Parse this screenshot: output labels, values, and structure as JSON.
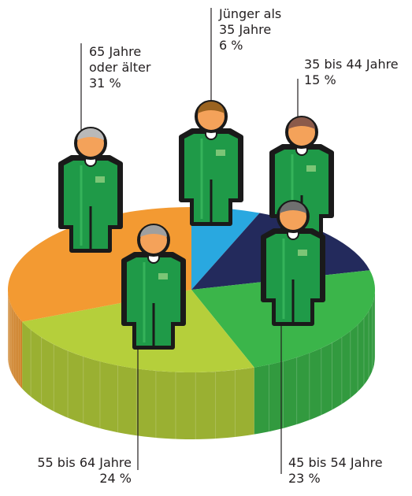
{
  "chart_data": {
    "type": "pie",
    "categories": [
      "Jünger als 35 Jahre",
      "35 bis 44 Jahre",
      "45 bis 54 Jahre",
      "55 bis 64 Jahre",
      "65 Jahre oder älter"
    ],
    "values": [
      6,
      15,
      23,
      24,
      31
    ],
    "value_labels": [
      "6 %",
      "15 %",
      "23 %",
      "24 %",
      "31 %"
    ],
    "colors": [
      "#29a8e0",
      "#232a5c",
      "#3bb54a",
      "#b5cf3b",
      "#f39a32"
    ]
  }
}
